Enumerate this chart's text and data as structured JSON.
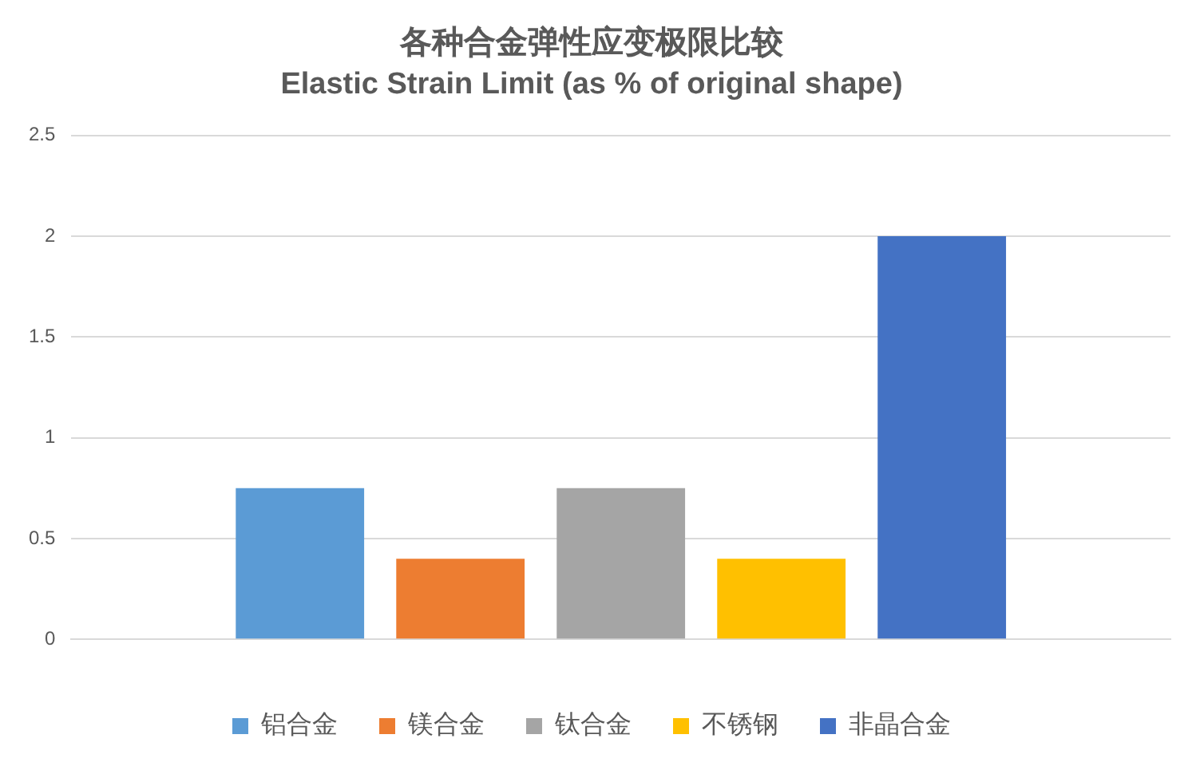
{
  "chart_data": {
    "type": "bar",
    "title": "各种合金弹性应变极限比较",
    "subtitle": "Elastic Strain Limit (as % of original shape)",
    "categories": [
      null
    ],
    "series": [
      {
        "name": "铝合金",
        "color": "#5b9bd5",
        "values": [
          0.75
        ]
      },
      {
        "name": "镁合金",
        "color": "#ed7d31",
        "values": [
          0.4
        ]
      },
      {
        "name": "钛合金",
        "color": "#a5a5a5",
        "values": [
          0.75
        ]
      },
      {
        "name": "不锈钢",
        "color": "#ffc000",
        "values": [
          0.4
        ]
      },
      {
        "name": "非晶合金",
        "color": "#4472c4",
        "values": [
          2
        ]
      }
    ],
    "ylim": [
      0,
      2.5
    ],
    "yticks": [
      0,
      0.5,
      1,
      1.5,
      2,
      2.5
    ],
    "grid": "y",
    "legend": "bottom"
  }
}
